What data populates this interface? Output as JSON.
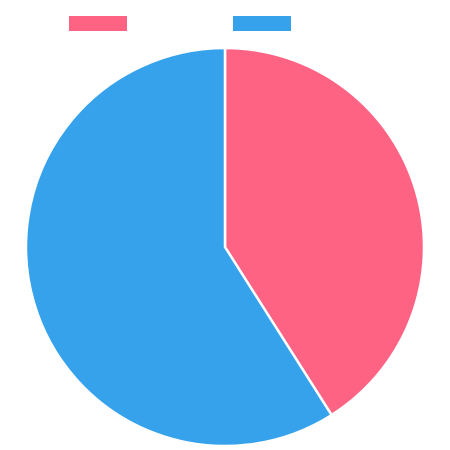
{
  "chart_data": {
    "type": "pie",
    "title": "",
    "start_angle": "top",
    "direction": "clockwise",
    "legend_position": "top",
    "series": [
      {
        "name": "",
        "value": 41,
        "color": "#FF6384"
      },
      {
        "name": "",
        "value": 59,
        "color": "#36A2EB"
      }
    ]
  }
}
